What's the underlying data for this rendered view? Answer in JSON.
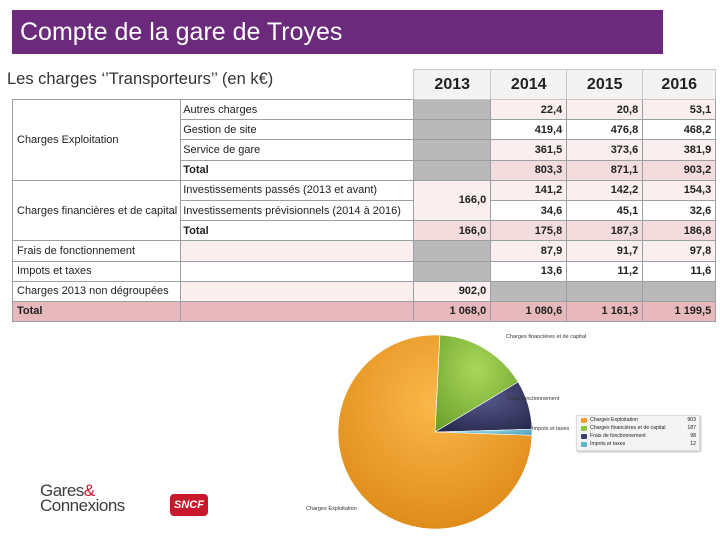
{
  "title": "Compte de la gare de Troyes",
  "subtitle": "Les charges ‘’Transporteurs’’ (en k€)",
  "years": [
    "2013",
    "2014",
    "2015",
    "2016"
  ],
  "table": {
    "charges_exploitation": {
      "label": "Charges Exploitation",
      "rows": [
        {
          "label": "Autres charges",
          "v2014": "22,4",
          "v2015": "20,8",
          "v2016": "53,1"
        },
        {
          "label": "Gestion de site",
          "v2014": "419,4",
          "v2015": "476,8",
          "v2016": "468,2"
        },
        {
          "label": "Service de gare",
          "v2014": "361,5",
          "v2015": "373,6",
          "v2016": "381,9"
        },
        {
          "label": "Total",
          "v2014": "803,3",
          "v2015": "871,1",
          "v2016": "903,2"
        }
      ]
    },
    "charges_financieres": {
      "label": "Charges financières et de capital",
      "v2013": "166,0",
      "rows": [
        {
          "label": "Investissements passés (2013 et avant)",
          "v2014": "141,2",
          "v2015": "142,2",
          "v2016": "154,3"
        },
        {
          "label": "Investissements prévisionnels (2014 à 2016)",
          "v2014": "34,6",
          "v2015": "45,1",
          "v2016": "32,6"
        },
        {
          "label": "Total",
          "v2013": "166,0",
          "v2014": "175,8",
          "v2015": "187,3",
          "v2016": "186,8"
        }
      ]
    },
    "frais": {
      "label": "Frais de fonctionnement",
      "v2014": "87,9",
      "v2015": "91,7",
      "v2016": "97,8"
    },
    "impots": {
      "label": "Impots et taxes",
      "v2014": "13,6",
      "v2015": "11,2",
      "v2016": "11,6"
    },
    "non_degroupees": {
      "label": "Charges 2013 non dégroupées",
      "v2013": "902,0"
    },
    "total": {
      "label": "Total",
      "v2013": "1 068,0",
      "v2014": "1 080,6",
      "v2015": "1 161,3",
      "v2016": "1 199,5"
    }
  },
  "chart_data": {
    "type": "pie",
    "series": [
      {
        "name": "Charges Exploitation",
        "value": 903,
        "color": "#f5a02a"
      },
      {
        "name": "Charges financières et de capital",
        "value": 187,
        "color": "#8cc63f"
      },
      {
        "name": "Frais de fonctionnement",
        "value": 98,
        "color": "#3d3f6e"
      },
      {
        "name": "Impots et taxes",
        "value": 12,
        "color": "#5bb7d0"
      }
    ],
    "slice_labels": [
      "Charges Exploitation",
      "Charges financières et de capital",
      "Frais fonctionnement",
      "Impots et taxes"
    ],
    "legend": {
      "placement": "right",
      "entries": [
        {
          "label": "Charges Exploitation",
          "value": "903"
        },
        {
          "label": "Charges financières et de capital",
          "value": "187"
        },
        {
          "label": "Frais de fonctionnement",
          "value": "98"
        },
        {
          "label": "Impots et taxes",
          "value": "12"
        }
      ]
    }
  },
  "logos": {
    "gares_line1": "Gares",
    "gares_amp": "&",
    "gares_line2": "Connexions",
    "sncf": "SNCF"
  }
}
